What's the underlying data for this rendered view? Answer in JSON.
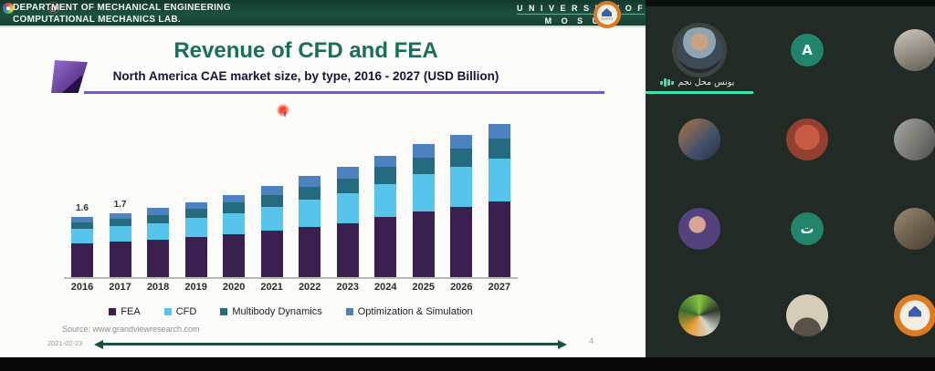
{
  "header": {
    "line1": "DEPARTMENT OF MECHANICAL ENGINEERING",
    "line2": "COMPUTATIONAL MECHANICS LAB.",
    "university_line1": "U N I V E R S I T Y  O F",
    "university_line2": "M O S U L",
    "icons": [
      "pinwheel-icon",
      "at-icon",
      "mosul-university-logo"
    ]
  },
  "slide": {
    "title": "Revenue of CFD and FEA",
    "subtitle": "North America CAE market size, by type, 2016 - 2027 (USD Billion)",
    "source": "Source: www.grandviewresearch.com",
    "date": "2021-02-23",
    "page_number": "4"
  },
  "chart_data": {
    "type": "bar",
    "stacked": true,
    "title": "North America CAE market size, by type, 2016 - 2027 (USD Billion)",
    "xlabel": "",
    "ylabel": "USD Billion",
    "ylim": [
      0,
      4.3
    ],
    "grid": false,
    "legend_position": "bottom",
    "categories": [
      "2016",
      "2017",
      "2018",
      "2019",
      "2020",
      "2021",
      "2022",
      "2023",
      "2024",
      "2025",
      "2026",
      "2027"
    ],
    "series": [
      {
        "name": "FEA",
        "color": "#39204f",
        "values": [
          0.9,
          0.95,
          1.0,
          1.08,
          1.15,
          1.25,
          1.35,
          1.45,
          1.6,
          1.75,
          1.88,
          2.03
        ]
      },
      {
        "name": "CFD",
        "color": "#57c4ec",
        "values": [
          0.39,
          0.41,
          0.45,
          0.5,
          0.57,
          0.64,
          0.72,
          0.8,
          0.9,
          1.0,
          1.08,
          1.15
        ]
      },
      {
        "name": "Multibody Dynamics",
        "color": "#256b80",
        "values": [
          0.18,
          0.19,
          0.22,
          0.24,
          0.27,
          0.31,
          0.35,
          0.39,
          0.44,
          0.45,
          0.47,
          0.53
        ]
      },
      {
        "name": "Optimization & Simulation",
        "color": "#4e81c0",
        "values": [
          0.13,
          0.15,
          0.18,
          0.18,
          0.21,
          0.25,
          0.28,
          0.31,
          0.31,
          0.35,
          0.37,
          0.39
        ]
      }
    ],
    "totals": [
      1.6,
      1.7,
      1.85,
      2.0,
      2.2,
      2.45,
      2.7,
      2.95,
      3.25,
      3.55,
      3.8,
      4.1
    ],
    "value_labels": {
      "2016": "1.6",
      "2017": "1.7"
    }
  },
  "participants": {
    "active_speaker": {
      "name": "يونس محل نجم",
      "status": "speaking"
    },
    "tiles": [
      {
        "type": "photo",
        "style": "man-portrait-blue",
        "active": true,
        "name": "يونس محل نجم"
      },
      {
        "type": "initial",
        "initial": "A"
      },
      {
        "type": "photo",
        "style": "blurry-light"
      },
      {
        "type": "photo",
        "style": "man-arm-raised"
      },
      {
        "type": "photo",
        "style": "person-red"
      },
      {
        "type": "photo",
        "style": "workshop-gray"
      },
      {
        "type": "photo",
        "style": "woman-hijab"
      },
      {
        "type": "initial",
        "initial": "ت"
      },
      {
        "type": "photo",
        "style": "person-indoor"
      },
      {
        "type": "photo",
        "style": "colorful-graphic"
      },
      {
        "type": "photo",
        "style": "man-suit"
      },
      {
        "type": "photo",
        "style": "mosul-logo"
      }
    ]
  },
  "colors": {
    "header_green": "#1c5140",
    "title_green": "#1c6e58",
    "accent_purple": "#6f5fb0",
    "active_speaker_green": "#3fe0b5",
    "panel_background": "#1d2521",
    "arrow_teal": "#1c4f44",
    "laser_red": "#ff3b28"
  }
}
